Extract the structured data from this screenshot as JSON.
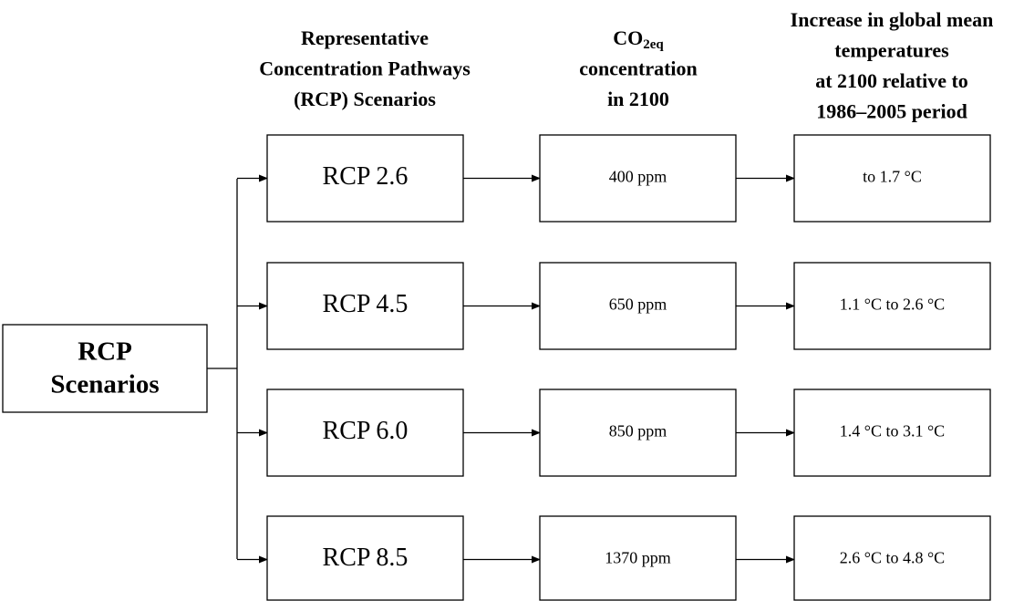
{
  "headers": [
    {
      "lines": [
        "Representative",
        "Concentration Pathways",
        "(RCP) Scenarios"
      ]
    },
    {
      "lines": [
        {
          "base": "CO",
          "sub": "2eq"
        },
        "concentration",
        "in 2100"
      ]
    },
    {
      "lines": [
        "Increase in global mean",
        "temperatures",
        "at 2100 relative to",
        "1986–2005 period"
      ]
    }
  ],
  "root": {
    "lines": [
      "RCP",
      "Scenarios"
    ]
  },
  "rows": [
    {
      "scenario": "RCP 2.6",
      "concentration": "400 ppm",
      "temperature": "to 1.7 °C"
    },
    {
      "scenario": "RCP 4.5",
      "concentration": "650 ppm",
      "temperature": "1.1 °C to 2.6 °C"
    },
    {
      "scenario": "RCP 6.0",
      "concentration": "850 ppm",
      "temperature": "1.4 °C to 3.1 °C"
    },
    {
      "scenario": "RCP 8.5",
      "concentration": "1370 ppm",
      "temperature": "2.6 °C to 4.8 °C"
    }
  ]
}
